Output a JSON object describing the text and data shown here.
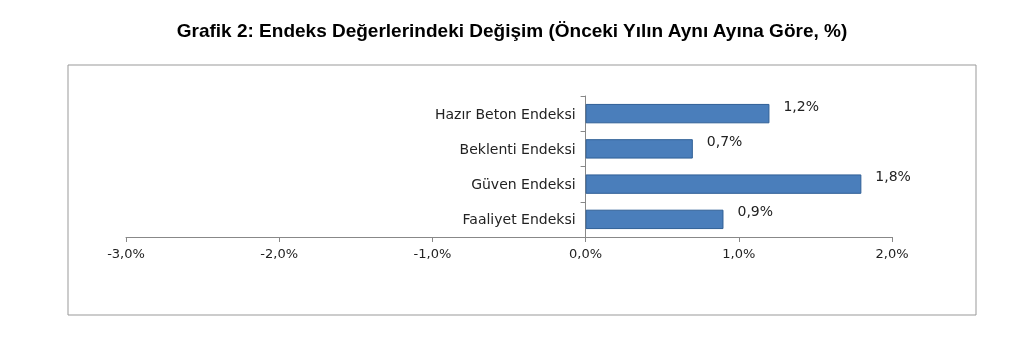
{
  "chart_data": {
    "type": "bar",
    "orientation": "horizontal",
    "title": "Grafik 2: Endeks Değerlerindeki Değişim (Önceki Yılın Aynı Ayına Göre, %)",
    "categories": [
      "Hazır Beton Endeksi",
      "Beklenti Endeksi",
      "Güven Endeksi",
      "Faaliyet Endeksi"
    ],
    "values": [
      1.2,
      0.7,
      1.8,
      0.9
    ],
    "value_labels": [
      "1,2%",
      "0,7%",
      "1,8%",
      "0,9%"
    ],
    "color": "#4a7ebb",
    "xlim": [
      -3,
      2
    ],
    "xticks": [
      {
        "value": -3,
        "label": "-3,0%"
      },
      {
        "value": -2,
        "label": "-2,0%"
      },
      {
        "value": -1,
        "label": "-1,0%"
      },
      {
        "value": 0,
        "label": "0,0%"
      },
      {
        "value": 1,
        "label": "1,0%"
      },
      {
        "value": 2,
        "label": "2,0%"
      }
    ],
    "grid": false
  }
}
